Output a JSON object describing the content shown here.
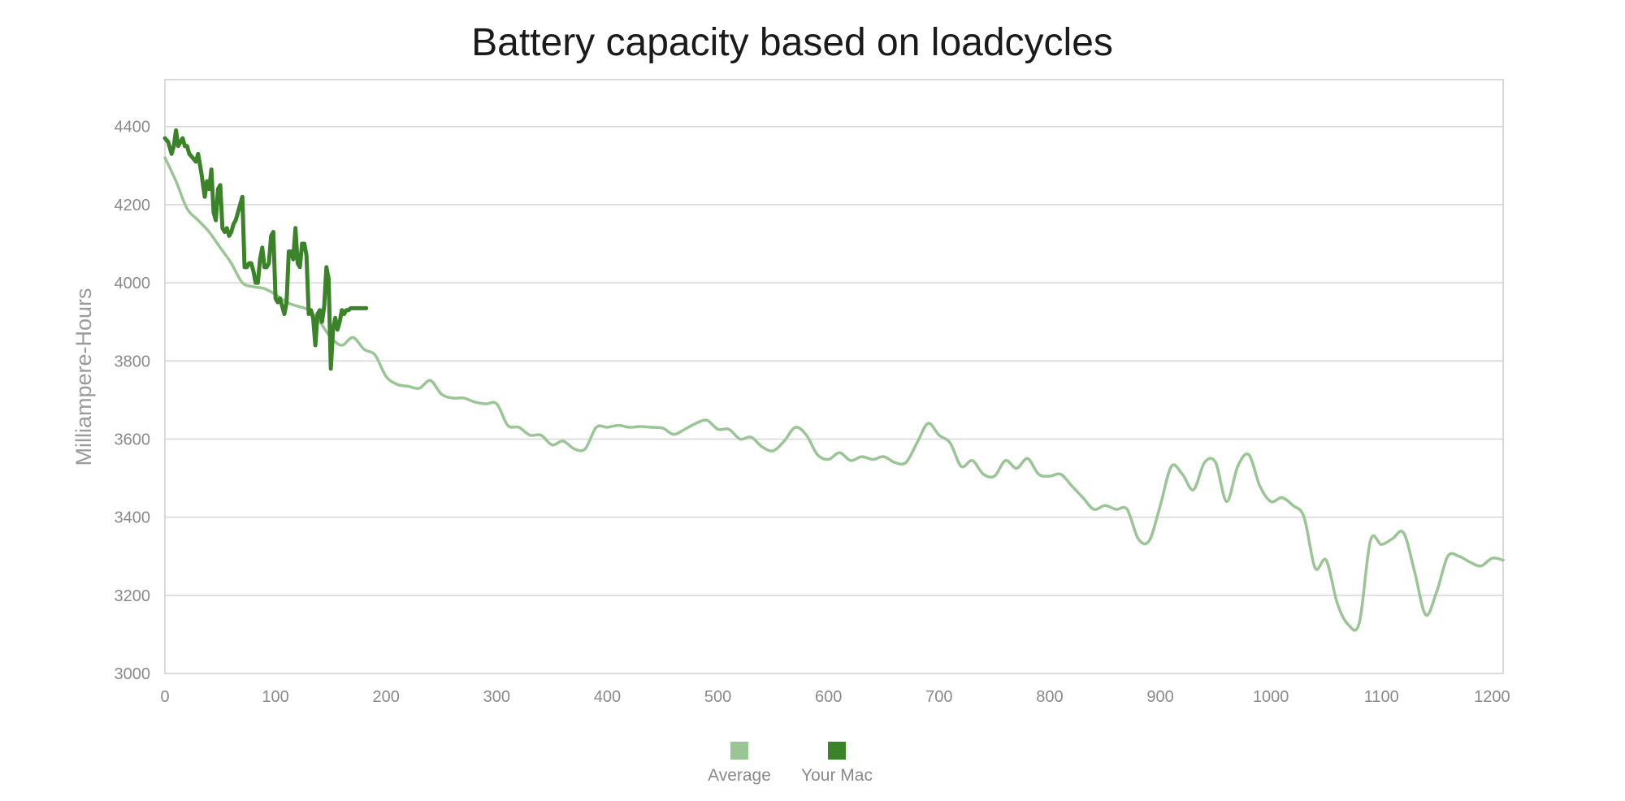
{
  "chart_data": {
    "type": "line",
    "title": "Battery capacity based on loadcycles",
    "xlabel": "",
    "ylabel": "Milliampere-Hours",
    "xlim": [
      0,
      1210
    ],
    "ylim": [
      3000,
      4520
    ],
    "xticks": [
      0,
      100,
      200,
      300,
      400,
      500,
      600,
      700,
      800,
      900,
      1000,
      1100,
      1200
    ],
    "yticks": [
      3000,
      3200,
      3400,
      3600,
      3800,
      4000,
      4200,
      4400
    ],
    "grid": "horizontal",
    "legend_position": "bottom-center",
    "series": [
      {
        "name": "Average",
        "color": "#9ac595",
        "x": [
          0,
          10,
          20,
          30,
          40,
          50,
          60,
          70,
          80,
          90,
          100,
          110,
          120,
          130,
          140,
          150,
          160,
          170,
          180,
          190,
          200,
          210,
          220,
          230,
          240,
          250,
          260,
          270,
          280,
          290,
          300,
          310,
          320,
          330,
          340,
          350,
          360,
          370,
          380,
          390,
          400,
          410,
          420,
          430,
          440,
          450,
          460,
          470,
          480,
          490,
          500,
          510,
          520,
          530,
          540,
          550,
          560,
          570,
          580,
          590,
          600,
          610,
          620,
          630,
          640,
          650,
          660,
          670,
          680,
          690,
          700,
          710,
          720,
          730,
          740,
          750,
          760,
          770,
          780,
          790,
          800,
          810,
          820,
          830,
          840,
          850,
          860,
          870,
          880,
          890,
          900,
          910,
          920,
          930,
          940,
          950,
          960,
          970,
          980,
          990,
          1000,
          1010,
          1020,
          1030,
          1040,
          1050,
          1060,
          1070,
          1080,
          1090,
          1100,
          1110,
          1120,
          1130,
          1140,
          1150,
          1160,
          1170,
          1180,
          1190,
          1200,
          1210
        ],
        "values": [
          4320,
          4260,
          4190,
          4160,
          4130,
          4090,
          4050,
          4000,
          3990,
          3985,
          3970,
          3950,
          3940,
          3930,
          3900,
          3860,
          3840,
          3860,
          3830,
          3815,
          3760,
          3740,
          3735,
          3730,
          3750,
          3715,
          3705,
          3705,
          3695,
          3690,
          3690,
          3635,
          3630,
          3610,
          3610,
          3585,
          3595,
          3575,
          3575,
          3630,
          3630,
          3635,
          3630,
          3632,
          3630,
          3628,
          3612,
          3625,
          3640,
          3648,
          3625,
          3625,
          3600,
          3605,
          3580,
          3570,
          3595,
          3630,
          3610,
          3560,
          3548,
          3565,
          3545,
          3555,
          3548,
          3555,
          3540,
          3540,
          3590,
          3640,
          3610,
          3590,
          3530,
          3545,
          3510,
          3505,
          3545,
          3525,
          3550,
          3510,
          3505,
          3510,
          3480,
          3450,
          3420,
          3430,
          3420,
          3420,
          3345,
          3340,
          3430,
          3530,
          3510,
          3470,
          3540,
          3540,
          3440,
          3530,
          3560,
          3480,
          3440,
          3450,
          3430,
          3400,
          3270,
          3290,
          3180,
          3125,
          3130,
          3340,
          3330,
          3345,
          3360,
          3260,
          3150,
          3210,
          3300,
          3300,
          3285,
          3275,
          3295,
          3290
        ]
      },
      {
        "name": "Your Mac",
        "color": "#3b8329",
        "x": [
          0,
          3,
          6,
          8,
          10,
          12,
          14,
          16,
          18,
          20,
          22,
          25,
          28,
          30,
          33,
          36,
          38,
          40,
          42,
          44,
          46,
          48,
          50,
          52,
          54,
          56,
          58,
          60,
          62,
          64,
          66,
          68,
          70,
          72,
          74,
          76,
          78,
          80,
          82,
          84,
          86,
          88,
          90,
          92,
          94,
          96,
          98,
          100,
          102,
          104,
          106,
          108,
          110,
          112,
          114,
          116,
          118,
          120,
          122,
          124,
          126,
          128,
          130,
          132,
          134,
          136,
          138,
          140,
          142,
          144,
          146,
          148,
          150,
          152,
          154,
          156,
          158,
          160,
          162,
          164,
          166,
          168,
          170,
          172,
          174,
          176,
          178,
          180,
          182
        ],
        "values": [
          4370,
          4360,
          4330,
          4350,
          4390,
          4350,
          4360,
          4370,
          4350,
          4350,
          4330,
          4320,
          4310,
          4330,
          4280,
          4220,
          4260,
          4240,
          4290,
          4180,
          4160,
          4240,
          4250,
          4140,
          4130,
          4140,
          4120,
          4130,
          4150,
          4160,
          4180,
          4200,
          4220,
          4040,
          4040,
          4050,
          4050,
          4030,
          4000,
          4000,
          4060,
          4090,
          4040,
          4040,
          4050,
          4120,
          4130,
          3960,
          3950,
          3960,
          3940,
          3920,
          3950,
          4080,
          4080,
          4060,
          4140,
          4050,
          4040,
          4100,
          4100,
          4070,
          3920,
          3930,
          3910,
          3840,
          3920,
          3930,
          3900,
          3940,
          4040,
          4010,
          3780,
          3880,
          3910,
          3880,
          3900,
          3930,
          3920,
          3930,
          3930,
          3935,
          3935,
          3935,
          3935,
          3935,
          3935,
          3935,
          3935
        ]
      }
    ]
  },
  "legend": {
    "items": [
      {
        "label": "Average",
        "color": "#9ac595"
      },
      {
        "label": "Your Mac",
        "color": "#3b8329"
      }
    ]
  }
}
